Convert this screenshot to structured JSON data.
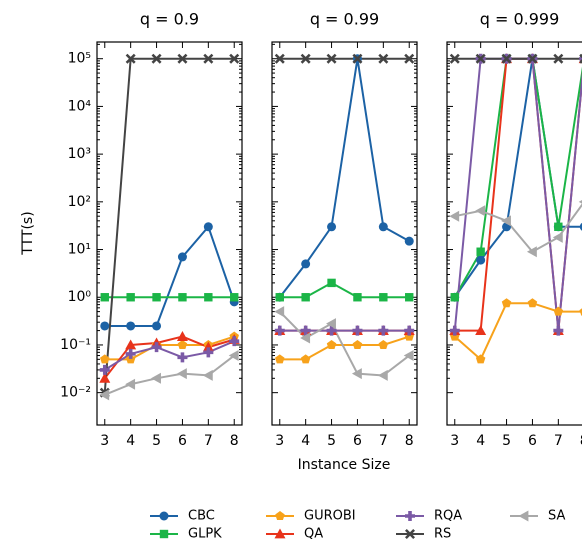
{
  "chart_data": [
    {
      "type": "line",
      "title": "q = 0.9",
      "ylabel": "TTT(s)",
      "log_scale": true,
      "x": [
        3,
        4,
        5,
        6,
        7,
        8
      ],
      "xlim": [
        2.7,
        8.3
      ],
      "xticks": [
        3,
        4,
        5,
        6,
        7,
        8
      ],
      "ylim": [
        0.0021,
        224000
      ],
      "yticks": [
        {
          "value": 0.01,
          "label": "10⁻²"
        },
        {
          "value": 0.1,
          "label": "10⁻¹"
        },
        {
          "value": 1,
          "label": "10⁰"
        },
        {
          "value": 10,
          "label": "10¹"
        },
        {
          "value": 100,
          "label": "10²"
        },
        {
          "value": 1000,
          "label": "10³"
        },
        {
          "value": 10000,
          "label": "10⁴"
        },
        {
          "value": 100000,
          "label": "10⁵"
        }
      ],
      "series": [
        {
          "name": "CBC",
          "color": "#1c62a5",
          "marker": "circle",
          "values": [
            0.25,
            0.25,
            0.25,
            7,
            30,
            0.8
          ]
        },
        {
          "name": "GLPK",
          "color": "#1bb547",
          "marker": "square",
          "values": [
            1,
            1,
            1,
            1,
            1,
            1
          ]
        },
        {
          "name": "GUROBI",
          "color": "#f7a21b",
          "marker": "pentagon",
          "values": [
            0.05,
            0.05,
            0.1,
            0.1,
            0.1,
            0.15
          ]
        },
        {
          "name": "QA",
          "color": "#e8331b",
          "marker": "triangle-up",
          "values": [
            0.02,
            0.1,
            0.11,
            0.15,
            0.09,
            0.13
          ]
        },
        {
          "name": "RQA",
          "color": "#7b5aa6",
          "marker": "plus",
          "values": [
            0.03,
            0.065,
            0.09,
            0.055,
            0.07,
            0.12
          ]
        },
        {
          "name": "RS",
          "color": "#444444",
          "marker": "x",
          "values": [
            0.01,
            100000,
            100000,
            100000,
            100000,
            100000
          ]
        },
        {
          "name": "SA",
          "color": "#a8a8a8",
          "marker": "triangle-left",
          "values": [
            0.009,
            0.015,
            0.02,
            0.025,
            0.023,
            0.06
          ]
        }
      ]
    },
    {
      "type": "line",
      "title": "q = 0.99",
      "xlabel": "Instance Size",
      "log_scale": true,
      "x": [
        3,
        4,
        5,
        6,
        7,
        8
      ],
      "xlim": [
        2.7,
        8.3
      ],
      "xticks": [
        3,
        4,
        5,
        6,
        7,
        8
      ],
      "ylim": [
        0.0021,
        224000
      ],
      "yticks": [
        0.01,
        0.1,
        1,
        10,
        100,
        1000,
        10000,
        100000
      ],
      "series": [
        {
          "name": "CBC",
          "color": "#1c62a5",
          "marker": "circle",
          "values": [
            1,
            5,
            30,
            100000,
            30,
            15
          ]
        },
        {
          "name": "GLPK",
          "color": "#1bb547",
          "marker": "square",
          "values": [
            1,
            1,
            2,
            1,
            1,
            1
          ]
        },
        {
          "name": "GUROBI",
          "color": "#f7a21b",
          "marker": "pentagon",
          "values": [
            0.05,
            0.05,
            0.1,
            0.1,
            0.1,
            0.15
          ]
        },
        {
          "name": "QA",
          "color": "#e8331b",
          "marker": "triangle-up",
          "values": [
            0.2,
            0.2,
            0.2,
            0.2,
            0.2,
            0.2
          ]
        },
        {
          "name": "RQA",
          "color": "#7b5aa6",
          "marker": "plus",
          "values": [
            0.2,
            0.2,
            0.2,
            0.2,
            0.2,
            0.2
          ]
        },
        {
          "name": "RS",
          "color": "#444444",
          "marker": "x",
          "values": [
            100000,
            100000,
            100000,
            100000,
            100000,
            100000
          ]
        },
        {
          "name": "SA",
          "color": "#a8a8a8",
          "marker": "triangle-left",
          "values": [
            0.5,
            0.14,
            0.28,
            0.025,
            0.023,
            0.06
          ]
        }
      ]
    },
    {
      "type": "line",
      "title": "q = 0.999",
      "log_scale": true,
      "x": [
        3,
        4,
        5,
        6,
        7,
        8
      ],
      "xlim": [
        2.7,
        8.3
      ],
      "xticks": [
        3,
        4,
        5,
        6,
        7,
        8
      ],
      "ylim": [
        0.0021,
        224000
      ],
      "yticks": [
        0.01,
        0.1,
        1,
        10,
        100,
        1000,
        10000,
        100000
      ],
      "series": [
        {
          "name": "CBC",
          "color": "#1c62a5",
          "marker": "circle",
          "values": [
            1,
            6,
            30,
            100000,
            30,
            30
          ]
        },
        {
          "name": "GLPK",
          "color": "#1bb547",
          "marker": "square",
          "values": [
            1,
            9,
            100000,
            100000,
            30,
            100000
          ]
        },
        {
          "name": "GUROBI",
          "color": "#f7a21b",
          "marker": "pentagon",
          "values": [
            0.15,
            0.05,
            0.75,
            0.75,
            0.5,
            0.5
          ]
        },
        {
          "name": "QA",
          "color": "#e8331b",
          "marker": "triangle-up",
          "values": [
            0.2,
            0.2,
            100000,
            100000,
            0.2,
            100000
          ]
        },
        {
          "name": "RQA",
          "color": "#7b5aa6",
          "marker": "plus",
          "values": [
            0.2,
            100000,
            100000,
            100000,
            0.2,
            100000
          ]
        },
        {
          "name": "RS",
          "color": "#444444",
          "marker": "x",
          "values": [
            100000,
            100000,
            100000,
            100000,
            100000,
            100000
          ]
        },
        {
          "name": "SA",
          "color": "#a8a8a8",
          "marker": "triangle-left",
          "values": [
            50,
            65,
            40,
            9,
            18,
            100
          ]
        }
      ]
    }
  ]
}
